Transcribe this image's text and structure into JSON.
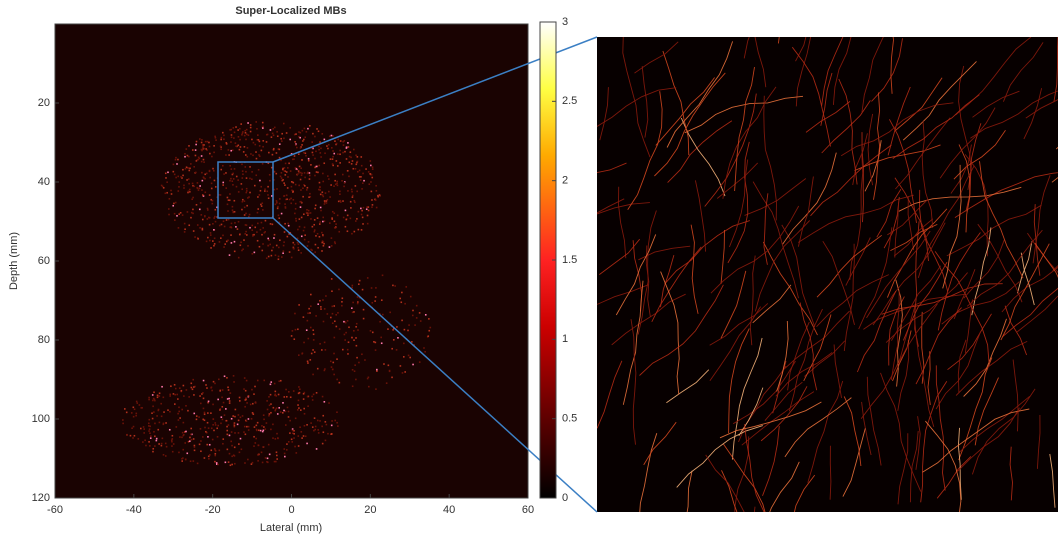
{
  "chart_data": {
    "type": "heatmap",
    "title": "Super-Localized MBs",
    "xlabel": "Lateral (mm)",
    "ylabel": "Depth (mm)",
    "xlim": [
      -60,
      60
    ],
    "xticks": [
      -60,
      -40,
      -20,
      0,
      20,
      40,
      60
    ],
    "ylim": [
      0,
      120
    ],
    "yticks": [
      20,
      40,
      60,
      80,
      100,
      120
    ],
    "yreverse": true,
    "colorbar": {
      "lim": [
        0,
        3
      ],
      "ticks": [
        0,
        0.5,
        1,
        1.5,
        2,
        2.5,
        3
      ]
    }
  }
}
